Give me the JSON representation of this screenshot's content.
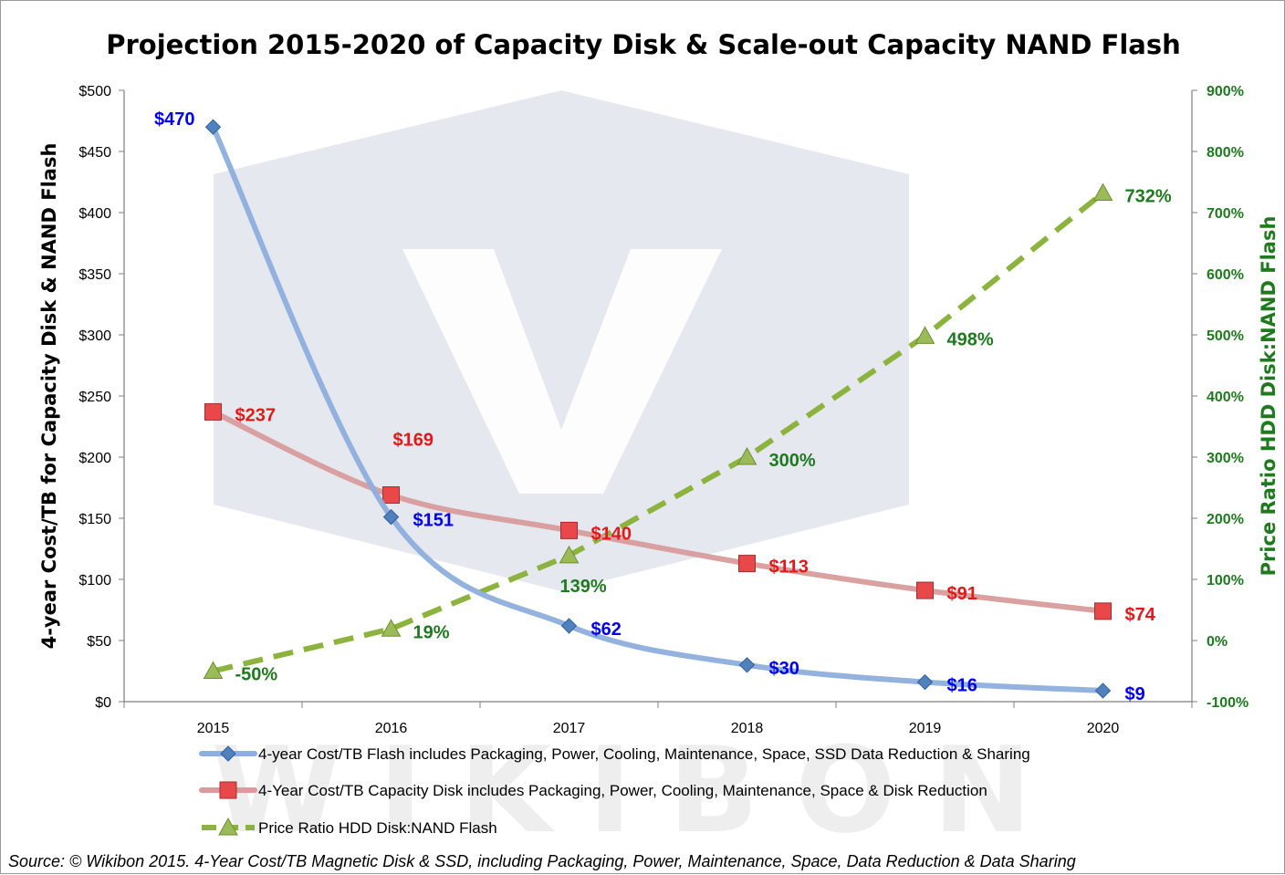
{
  "chart_data": {
    "type": "line",
    "title": "Projection 2015-2020 of Capacity Disk & Scale-out Capacity NAND Flash",
    "categories": [
      "2015",
      "2016",
      "2017",
      "2018",
      "2019",
      "2020"
    ],
    "y_left": {
      "label": "4-year Cost/TB for Capacity Disk & NAND Flash",
      "ylim": [
        0,
        500
      ],
      "ticks": [
        "$0",
        "$50",
        "$100",
        "$150",
        "$200",
        "$250",
        "$300",
        "$350",
        "$400",
        "$450",
        "$500"
      ]
    },
    "y_right": {
      "label": "Price Ratio HDD Disk:NAND Flash",
      "ylim": [
        -100,
        900
      ],
      "ticks": [
        "-100%",
        "0%",
        "100%",
        "200%",
        "300%",
        "400%",
        "500%",
        "600%",
        "700%",
        "800%",
        "900%"
      ]
    },
    "series": [
      {
        "name": "4-year Cost/TB Flash includes Packaging, Power, Cooling, Maintenance, Space, SSD Data Reduction & Sharing",
        "axis": "left",
        "marker": "diamond",
        "line_color": "#8eaedc",
        "marker_color": "#4f81bd",
        "label_color": "#0000ee",
        "values": [
          470,
          151,
          62,
          30,
          16,
          9
        ],
        "labels": [
          "$470",
          "$151",
          "$62",
          "$30",
          "$16",
          "$9"
        ]
      },
      {
        "name": "4-Year Cost/TB Capacity Disk includes Packaging, Power, Cooling, Maintenance, Space & Disk Reduction",
        "axis": "left",
        "marker": "square",
        "line_color": "#d89c9c",
        "marker_color": "#e8484a",
        "label_color": "#e31919",
        "values": [
          237,
          169,
          140,
          113,
          91,
          74
        ],
        "labels": [
          "$237",
          "$169",
          "$140",
          "$113",
          "$91",
          "$74"
        ]
      },
      {
        "name": "Price Ratio HDD Disk:NAND Flash",
        "axis": "right",
        "marker": "triangle",
        "line_color": "#8db33f",
        "marker_color": "#9bbb59",
        "label_color": "#1f7a1f",
        "values": [
          -50,
          19,
          139,
          300,
          498,
          732
        ],
        "labels": [
          "-50%",
          "19%",
          "139%",
          "300%",
          "498%",
          "732%"
        ]
      }
    ],
    "grid": false,
    "legend_position": "bottom",
    "colors": {
      "axis": "#7f7f7f",
      "watermark": "#dde0ea"
    }
  },
  "watermark": "WIKIBON",
  "source": "Source: © Wikibon 2015. 4-Year Cost/TB Magnetic Disk & SSD, including Packaging, Power, Maintenance, Space, Data Reduction & Data Sharing"
}
